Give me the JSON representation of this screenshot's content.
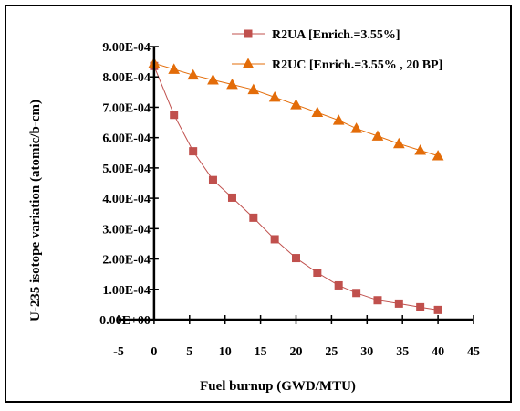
{
  "chart_data": {
    "type": "line",
    "xlabel": "Fuel burnup (GWD/MTU)",
    "ylabel": "U-235 isotope variation (atomic/b-cm)",
    "xlim": [
      -5,
      45
    ],
    "ylim": [
      0,
      0.0009
    ],
    "x_ticks": [
      "-5",
      "0",
      "5",
      "10",
      "15",
      "20",
      "25",
      "30",
      "35",
      "40",
      "45"
    ],
    "y_ticks": [
      "0.00E+00",
      "1.00E-04",
      "2.00E-04",
      "3.00E-04",
      "4.00E-04",
      "5.00E-04",
      "6.00E-04",
      "7.00E-04",
      "8.00E-04",
      "9.00E-04"
    ],
    "legend_position": "top-right",
    "grid": false,
    "series": [
      {
        "name": "R2UA [Enrich.=3.55%]",
        "marker": "square",
        "color": "#c0504d",
        "x": [
          0,
          2.8,
          5.5,
          8.3,
          11,
          14,
          17,
          20,
          23,
          26,
          28.5,
          31.5,
          34.5,
          37.5,
          40
        ],
        "y": [
          0.000836,
          0.000675,
          0.000555,
          0.00046,
          0.000402,
          0.000336,
          0.000265,
          0.000203,
          0.000155,
          0.000113,
          8.8e-05,
          6.4e-05,
          5.3e-05,
          4.1e-05,
          3.2e-05
        ]
      },
      {
        "name": "R2UC [Enrich.=3.55% , 20 BP]",
        "marker": "triangle",
        "color": "#e36c09",
        "x": [
          0,
          2.8,
          5.5,
          8.3,
          11,
          14,
          17,
          20,
          23,
          26,
          28.5,
          31.5,
          34.5,
          37.5,
          40
        ],
        "y": [
          0.000845,
          0.000825,
          0.000806,
          0.00079,
          0.000775,
          0.000758,
          0.000733,
          0.000708,
          0.000683,
          0.000657,
          0.00063,
          0.000605,
          0.00058,
          0.000558,
          0.00054
        ]
      }
    ]
  }
}
